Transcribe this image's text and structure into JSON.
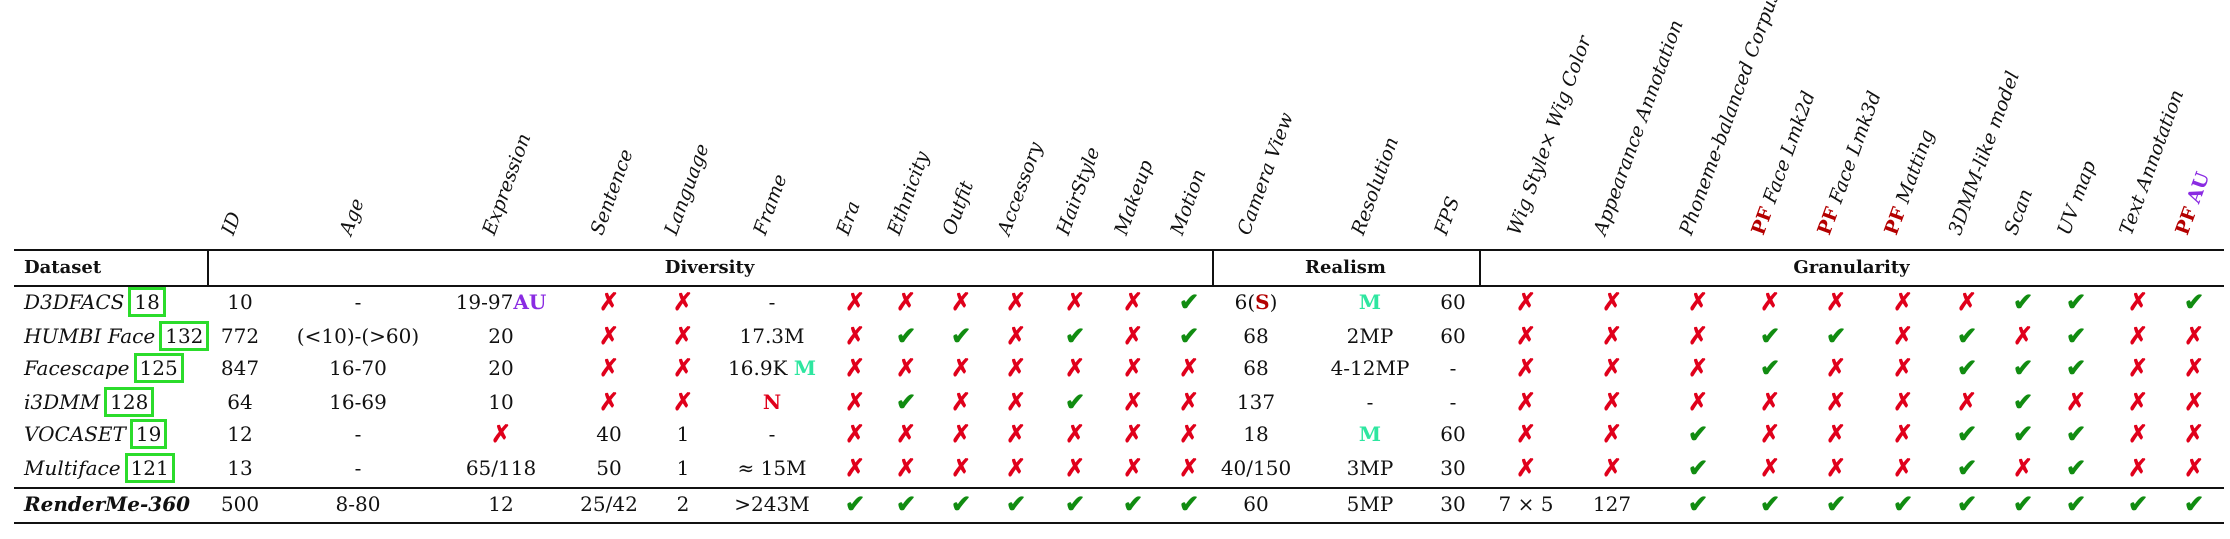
{
  "columns": [
    {
      "label": "ID"
    },
    {
      "label": "Age"
    },
    {
      "label": "Expression"
    },
    {
      "label": "Sentence"
    },
    {
      "label": "Language"
    },
    {
      "label": "Frame"
    },
    {
      "label": "Era"
    },
    {
      "label": "Ethnicity"
    },
    {
      "label": "Outfit"
    },
    {
      "label": "Accessory"
    },
    {
      "label": "HairStyle"
    },
    {
      "label": "Makeup"
    },
    {
      "label": "Motion"
    },
    {
      "label": "Camera View"
    },
    {
      "label": "Resolution"
    },
    {
      "label": "FPS"
    },
    {
      "label": "Wig Style× Wig Color"
    },
    {
      "label": "Appearance Annotation"
    },
    {
      "label": "Phoneme-balanced Corpus"
    },
    {
      "prefix": "PF",
      "label": "Face Lmk2d"
    },
    {
      "prefix": "PF",
      "label": "Face Lmk3d"
    },
    {
      "prefix": "PF",
      "label": "Matting"
    },
    {
      "label": "3DMM-like model"
    },
    {
      "label": "Scan"
    },
    {
      "label": "UV map"
    },
    {
      "label": "Text Annotation"
    },
    {
      "prefix": "PF",
      "label": "AU"
    }
  ],
  "header": {
    "dataset": "Dataset",
    "groups": [
      "Diversity",
      "Realism",
      "Granularity"
    ]
  },
  "symbols": {
    "cross": "✗",
    "check": "✔"
  },
  "colors": {
    "cross": "#e0001b",
    "check": "#118c11",
    "ref_box": "#2bdc2b",
    "pf": "#b40000",
    "au": "#8a2be2",
    "m": "#2ee6a0"
  },
  "rows": [
    {
      "name": "D3DFACS",
      "ref": "18",
      "cells": [
        {
          "t": "10"
        },
        {
          "t": "-"
        },
        {
          "t": "19-97",
          "suffix": "AU"
        },
        {
          "sym": "x"
        },
        {
          "sym": "x"
        },
        {
          "t": "-"
        },
        {
          "sym": "x"
        },
        {
          "sym": "x"
        },
        {
          "sym": "x"
        },
        {
          "sym": "x"
        },
        {
          "sym": "x"
        },
        {
          "sym": "x"
        },
        {
          "sym": "c"
        },
        {
          "t": "6(",
          "mid": "S",
          "after": ")"
        },
        {
          "t": "",
          "mid": "M",
          "midcls": "m"
        },
        {
          "t": "60"
        },
        {
          "sym": "x"
        },
        {
          "sym": "x"
        },
        {
          "sym": "x"
        },
        {
          "sym": "x"
        },
        {
          "sym": "x"
        },
        {
          "sym": "x"
        },
        {
          "sym": "x"
        },
        {
          "sym": "c"
        },
        {
          "sym": "c"
        },
        {
          "sym": "x"
        },
        {
          "sym": "c"
        }
      ]
    },
    {
      "name": "HUMBI Face",
      "ref": "132",
      "cells": [
        {
          "t": "772"
        },
        {
          "t": "(<10)-(>60)"
        },
        {
          "t": "20"
        },
        {
          "sym": "x"
        },
        {
          "sym": "x"
        },
        {
          "t": "17.3M"
        },
        {
          "sym": "x"
        },
        {
          "sym": "c"
        },
        {
          "sym": "c"
        },
        {
          "sym": "x"
        },
        {
          "sym": "c"
        },
        {
          "sym": "x"
        },
        {
          "sym": "c"
        },
        {
          "t": "68"
        },
        {
          "t": "2MP"
        },
        {
          "t": "60"
        },
        {
          "sym": "x"
        },
        {
          "sym": "x"
        },
        {
          "sym": "x"
        },
        {
          "sym": "c"
        },
        {
          "sym": "c"
        },
        {
          "sym": "x"
        },
        {
          "sym": "c"
        },
        {
          "sym": "x"
        },
        {
          "sym": "c"
        },
        {
          "sym": "x"
        },
        {
          "sym": "x"
        }
      ]
    },
    {
      "name": "Facescape",
      "ref": "125",
      "cells": [
        {
          "t": "847"
        },
        {
          "t": "16-70"
        },
        {
          "t": "20"
        },
        {
          "sym": "x"
        },
        {
          "sym": "x"
        },
        {
          "t": "16.9K ",
          "mid": "M",
          "midcls": "m"
        },
        {
          "sym": "x"
        },
        {
          "sym": "x"
        },
        {
          "sym": "x"
        },
        {
          "sym": "x"
        },
        {
          "sym": "x"
        },
        {
          "sym": "x"
        },
        {
          "sym": "x"
        },
        {
          "t": "68"
        },
        {
          "t": "4-12MP"
        },
        {
          "t": "-"
        },
        {
          "sym": "x"
        },
        {
          "sym": "x"
        },
        {
          "sym": "x"
        },
        {
          "sym": "c"
        },
        {
          "sym": "x"
        },
        {
          "sym": "x"
        },
        {
          "sym": "c"
        },
        {
          "sym": "c"
        },
        {
          "sym": "c"
        },
        {
          "sym": "x"
        },
        {
          "sym": "x"
        }
      ]
    },
    {
      "name": "i3DMM",
      "ref": "128",
      "cells": [
        {
          "t": "64"
        },
        {
          "t": "16-69"
        },
        {
          "t": "10"
        },
        {
          "sym": "x"
        },
        {
          "sym": "x"
        },
        {
          "t": "",
          "mid": "N",
          "midcls": "n"
        },
        {
          "sym": "x"
        },
        {
          "sym": "c"
        },
        {
          "sym": "x"
        },
        {
          "sym": "x"
        },
        {
          "sym": "c"
        },
        {
          "sym": "x"
        },
        {
          "sym": "x"
        },
        {
          "t": "137"
        },
        {
          "t": "-"
        },
        {
          "t": "-"
        },
        {
          "sym": "x"
        },
        {
          "sym": "x"
        },
        {
          "sym": "x"
        },
        {
          "sym": "x"
        },
        {
          "sym": "x"
        },
        {
          "sym": "x"
        },
        {
          "sym": "x"
        },
        {
          "sym": "c"
        },
        {
          "sym": "x"
        },
        {
          "sym": "x"
        },
        {
          "sym": "x"
        }
      ]
    },
    {
      "name": "VOCASET",
      "ref": "19",
      "cells": [
        {
          "t": "12"
        },
        {
          "t": "-"
        },
        {
          "sym": "x"
        },
        {
          "t": "40"
        },
        {
          "t": "1"
        },
        {
          "t": "-"
        },
        {
          "sym": "x"
        },
        {
          "sym": "x"
        },
        {
          "sym": "x"
        },
        {
          "sym": "x"
        },
        {
          "sym": "x"
        },
        {
          "sym": "x"
        },
        {
          "sym": "x"
        },
        {
          "t": "18"
        },
        {
          "t": "",
          "mid": "M",
          "midcls": "m"
        },
        {
          "t": "60"
        },
        {
          "sym": "x"
        },
        {
          "sym": "x"
        },
        {
          "sym": "c"
        },
        {
          "sym": "x"
        },
        {
          "sym": "x"
        },
        {
          "sym": "x"
        },
        {
          "sym": "c"
        },
        {
          "sym": "c"
        },
        {
          "sym": "c"
        },
        {
          "sym": "x"
        },
        {
          "sym": "x"
        }
      ]
    },
    {
      "name": "Multiface",
      "ref": "121",
      "cells": [
        {
          "t": "13"
        },
        {
          "t": "-"
        },
        {
          "t": "65/118"
        },
        {
          "t": "50"
        },
        {
          "t": "1"
        },
        {
          "t": "≈ 15M"
        },
        {
          "sym": "x"
        },
        {
          "sym": "x"
        },
        {
          "sym": "x"
        },
        {
          "sym": "x"
        },
        {
          "sym": "x"
        },
        {
          "sym": "x"
        },
        {
          "sym": "x"
        },
        {
          "t": "40/150"
        },
        {
          "t": "3MP"
        },
        {
          "t": "30"
        },
        {
          "sym": "x"
        },
        {
          "sym": "x"
        },
        {
          "sym": "c"
        },
        {
          "sym": "x"
        },
        {
          "sym": "x"
        },
        {
          "sym": "x"
        },
        {
          "sym": "c"
        },
        {
          "sym": "x"
        },
        {
          "sym": "c"
        },
        {
          "sym": "x"
        },
        {
          "sym": "x"
        }
      ]
    },
    {
      "name": "RenderMe-360",
      "bold": true,
      "cells": [
        {
          "t": "500"
        },
        {
          "t": "8-80"
        },
        {
          "t": "12"
        },
        {
          "t": "25/42"
        },
        {
          "t": "2"
        },
        {
          "t": ">243M"
        },
        {
          "sym": "c"
        },
        {
          "sym": "c"
        },
        {
          "sym": "c"
        },
        {
          "sym": "c"
        },
        {
          "sym": "c"
        },
        {
          "sym": "c"
        },
        {
          "sym": "c"
        },
        {
          "t": "60"
        },
        {
          "t": "5MP"
        },
        {
          "t": "30"
        },
        {
          "t": "7 × 5"
        },
        {
          "t": "127"
        },
        {
          "sym": "c"
        },
        {
          "sym": "c"
        },
        {
          "sym": "c"
        },
        {
          "sym": "c"
        },
        {
          "sym": "c"
        },
        {
          "sym": "c"
        },
        {
          "sym": "c"
        },
        {
          "sym": "c"
        },
        {
          "sym": "c"
        }
      ]
    }
  ]
}
